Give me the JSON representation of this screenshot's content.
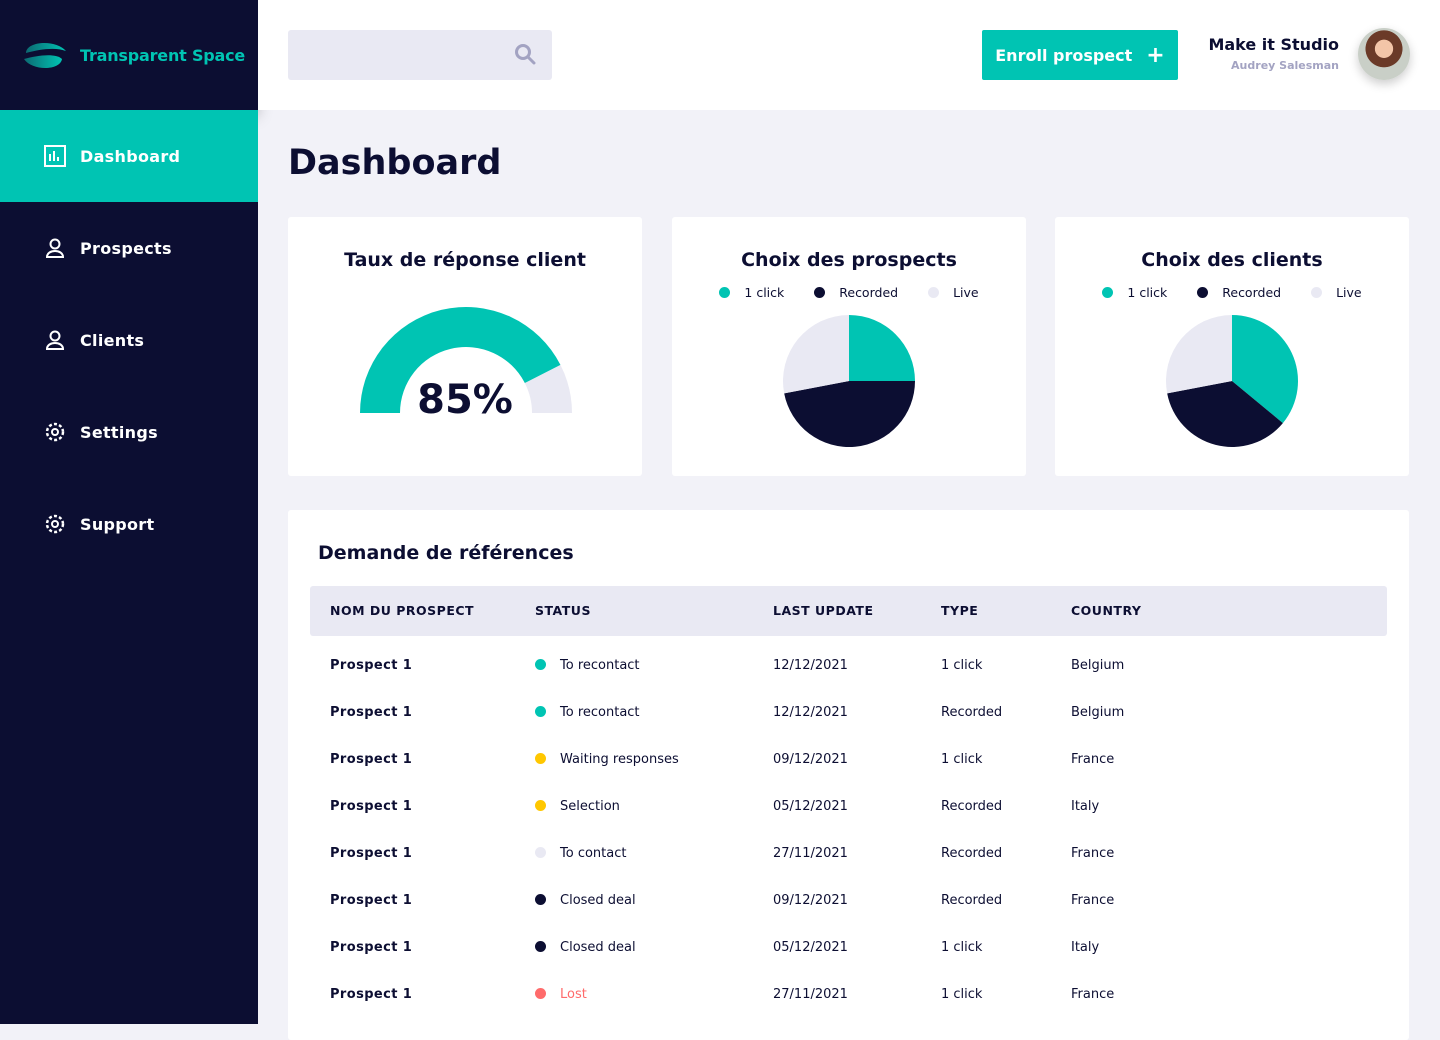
{
  "app": {
    "name": "Transparent Space"
  },
  "sidebar": {
    "items": [
      {
        "label": "Dashboard",
        "icon": "chart-icon",
        "active": true
      },
      {
        "label": "Prospects",
        "icon": "user-icon"
      },
      {
        "label": "Clients",
        "icon": "user-icon"
      },
      {
        "label": "Settings",
        "icon": "gear-icon"
      },
      {
        "label": "Support",
        "icon": "gear-icon"
      }
    ]
  },
  "header": {
    "search_placeholder": "",
    "enroll_label": "Enroll prospect",
    "enroll_icon": "+",
    "company": "Make it Studio",
    "user": "Audrey Salesman"
  },
  "page_title": "Dashboard",
  "colors": {
    "teal": "#00C4B3",
    "navy": "#0C0E32",
    "light": "#E9E9F3",
    "yellow": "#FFC700",
    "red": "#FF6B6B"
  },
  "chart_data": [
    {
      "type": "gauge",
      "title": "Taux de réponse client",
      "value": 85,
      "label": "85%"
    },
    {
      "type": "pie",
      "title": "Choix des prospects",
      "categories": [
        "1 click",
        "Recorded",
        "Live"
      ],
      "values": [
        25,
        47,
        28
      ],
      "legend": "top"
    },
    {
      "type": "pie",
      "title": "Choix des clients",
      "categories": [
        "1 click",
        "Recorded",
        "Live"
      ],
      "values": [
        36,
        36,
        28
      ],
      "legend": "top"
    }
  ],
  "table": {
    "title": "Demande de références",
    "columns": [
      "NOM DU PROSPECT",
      "STATUS",
      "LAST UPDATE",
      "TYPE",
      "COUNTRY"
    ],
    "rows": [
      {
        "name": "Prospect 1",
        "status": "To recontact",
        "status_color": "#00C4B3",
        "date": "12/12/2021",
        "type": "1 click",
        "country": "Belgium"
      },
      {
        "name": "Prospect 1",
        "status": "To recontact",
        "status_color": "#00C4B3",
        "date": "12/12/2021",
        "type": "Recorded",
        "country": "Belgium"
      },
      {
        "name": "Prospect 1",
        "status": "Waiting responses",
        "status_color": "#FFC700",
        "date": "09/12/2021",
        "type": "1 click",
        "country": "France"
      },
      {
        "name": "Prospect 1",
        "status": "Selection",
        "status_color": "#FFC700",
        "date": "05/12/2021",
        "type": "Recorded",
        "country": "Italy"
      },
      {
        "name": "Prospect 1",
        "status": "To contact",
        "status_color": "#E9E9F3",
        "date": "27/11/2021",
        "type": "Recorded",
        "country": "France"
      },
      {
        "name": "Prospect 1",
        "status": "Closed deal",
        "status_color": "#0C0E32",
        "date": "09/12/2021",
        "type": "Recorded",
        "country": "France"
      },
      {
        "name": "Prospect 1",
        "status": "Closed deal",
        "status_color": "#0C0E32",
        "date": "05/12/2021",
        "type": "1 click",
        "country": "Italy"
      },
      {
        "name": "Prospect 1",
        "status": "Lost",
        "status_color": "#FF6B6B",
        "date": "27/11/2021",
        "type": "1 click",
        "country": "France"
      }
    ]
  }
}
